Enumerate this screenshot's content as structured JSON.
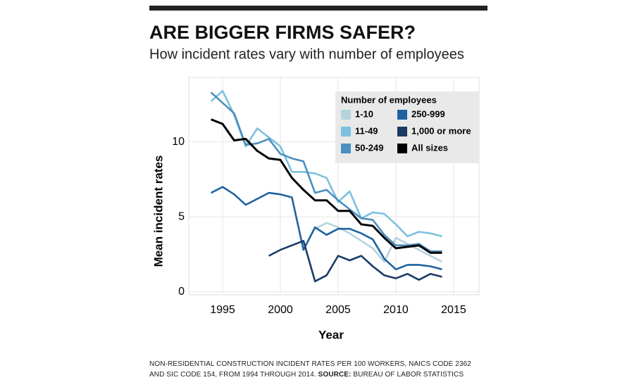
{
  "chart_data": {
    "type": "line",
    "title": "ARE BIGGER FIRMS SAFER?",
    "subtitle": "How incident rates vary with number of employees",
    "x_label": "Year",
    "y_label": "Mean incident rates",
    "legend_title": "Number of employees",
    "legend_position": "top-right",
    "grid": true,
    "x": [
      1994,
      1995,
      1996,
      1997,
      1998,
      1999,
      2000,
      2001,
      2002,
      2003,
      2004,
      2005,
      2006,
      2007,
      2008,
      2009,
      2010,
      2011,
      2012,
      2013,
      2014
    ],
    "xlim": [
      1992.07,
      2017.2
    ],
    "xticks": [
      1995,
      2000,
      2005,
      2010,
      2015
    ],
    "ylim": [
      -0.2,
      14.3
    ],
    "yticks": [
      0,
      5,
      10
    ],
    "series": [
      {
        "name": "1-10",
        "color": "#b3d4df",
        "values": [
          null,
          null,
          null,
          null,
          null,
          null,
          null,
          null,
          null,
          4.2,
          4.6,
          4.3,
          3.9,
          3.4,
          2.9,
          2.0,
          3.6,
          3.2,
          2.8,
          2.4,
          2.0
        ]
      },
      {
        "name": "11-49",
        "color": "#7dc0df",
        "values": [
          12.7,
          13.4,
          11.8,
          9.7,
          10.9,
          10.3,
          9.7,
          8.0,
          8.0,
          7.9,
          7.6,
          6.0,
          6.7,
          4.9,
          5.3,
          5.2,
          4.5,
          3.7,
          4.0,
          3.9,
          3.7
        ]
      },
      {
        "name": "50-249",
        "color": "#4a8fbf",
        "values": [
          13.3,
          12.6,
          11.9,
          9.8,
          9.9,
          10.2,
          9.2,
          8.9,
          8.7,
          6.6,
          6.8,
          6.1,
          5.5,
          4.9,
          4.8,
          3.8,
          3.1,
          3.1,
          3.2,
          2.7,
          2.7
        ]
      },
      {
        "name": "250-999",
        "color": "#1f62a0",
        "values": [
          6.6,
          7.0,
          6.5,
          5.8,
          6.2,
          6.6,
          6.5,
          6.3,
          2.8,
          4.3,
          3.8,
          4.2,
          4.2,
          3.9,
          3.5,
          2.2,
          1.5,
          1.8,
          1.8,
          1.7,
          1.5
        ]
      },
      {
        "name": "1,000 or more",
        "color": "#1c3a66",
        "values": [
          null,
          null,
          null,
          null,
          null,
          2.4,
          2.8,
          3.1,
          3.4,
          0.7,
          1.1,
          2.4,
          2.1,
          2.4,
          1.7,
          1.1,
          0.9,
          1.2,
          0.8,
          1.2,
          1.0
        ]
      },
      {
        "name": "All sizes",
        "color": "#000000",
        "values": [
          11.5,
          11.2,
          10.1,
          10.2,
          9.4,
          8.9,
          8.8,
          7.6,
          6.8,
          6.1,
          6.1,
          5.4,
          5.4,
          4.5,
          4.4,
          3.6,
          2.9,
          3.0,
          3.1,
          2.6,
          2.6
        ]
      }
    ],
    "footnote": "NON-RESIDENTIAL CONSTRUCTION INCIDENT RATES PER 100 WORKERS, NAICS CODE 2362 AND SIC CODE 154, FROM 1994 THROUGH 2014.",
    "source_label": "SOURCE:",
    "source": "BUREAU OF LABOR STATISTICS"
  }
}
